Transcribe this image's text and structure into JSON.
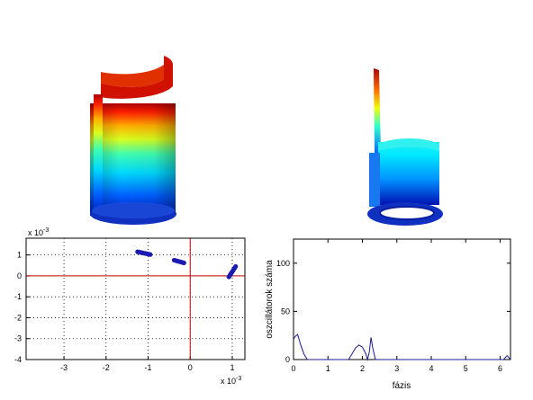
{
  "chart_data": [
    {
      "type": "surface3d",
      "description_colormap": "jet",
      "shape": "partial cylinder with rising front wall",
      "colors": [
        "#0000c8",
        "#00c8ff",
        "#ffff00",
        "#ff2000",
        "#a00000"
      ]
    },
    {
      "type": "surface3d",
      "description_colormap": "jet",
      "shape": "ring with tall spike",
      "colors": [
        "#0000c8",
        "#00c8ff",
        "#ffff00",
        "#ff2000",
        "#a00000"
      ]
    },
    {
      "type": "scatter",
      "exponent_top": "x 10",
      "exponent_top_power": "-3",
      "exponent_bottom": "x 10",
      "exponent_bottom_power": "-3",
      "xlim": [
        -3.9,
        1.3
      ],
      "ylim": [
        -4,
        1.8
      ],
      "xticks": [
        -3,
        -2,
        -1,
        0,
        1
      ],
      "xtick_labels": [
        "-3",
        "-2",
        "-1",
        "0",
        "1"
      ],
      "yticks": [
        1,
        0,
        -1,
        -2,
        -3,
        -4
      ],
      "ytick_labels": [
        "1",
        "0",
        "-1",
        "-2",
        "-3",
        "-4"
      ],
      "grid": true,
      "crosshair_color": "#c00000",
      "marker_color": "#1a1ab4",
      "clusters": [
        {
          "x0": -1.25,
          "y0": 1.15,
          "x1": -0.95,
          "y1": 1.02
        },
        {
          "x0": -0.38,
          "y0": 0.75,
          "x1": -0.15,
          "y1": 0.62
        },
        {
          "x0": 0.92,
          "y0": -0.05,
          "x1": 1.08,
          "y1": 0.45
        }
      ]
    },
    {
      "type": "line",
      "xlabel": "fázis",
      "ylabel": "oszcillátorok száma",
      "xlim": [
        0,
        6.3
      ],
      "ylim": [
        0,
        125
      ],
      "xticks": [
        0,
        1,
        2,
        3,
        4,
        5,
        6
      ],
      "xtick_labels": [
        "0",
        "1",
        "2",
        "3",
        "4",
        "5",
        "6"
      ],
      "yticks": [
        0,
        50,
        100
      ],
      "ytick_labels": [
        "0",
        "50",
        "100"
      ],
      "line_color": "#1a1a8c",
      "x": [
        0,
        0.05,
        0.12,
        0.2,
        0.3,
        0.4,
        1.6,
        1.7,
        1.8,
        1.9,
        2.0,
        2.1,
        2.15,
        2.2,
        2.25,
        2.3,
        2.38,
        2.45,
        6.1,
        6.2,
        6.3
      ],
      "y": [
        21,
        24,
        26,
        16,
        6,
        0,
        0,
        6,
        12,
        15,
        13,
        6,
        0,
        8,
        23,
        12,
        0,
        0,
        0,
        4,
        0
      ]
    }
  ]
}
